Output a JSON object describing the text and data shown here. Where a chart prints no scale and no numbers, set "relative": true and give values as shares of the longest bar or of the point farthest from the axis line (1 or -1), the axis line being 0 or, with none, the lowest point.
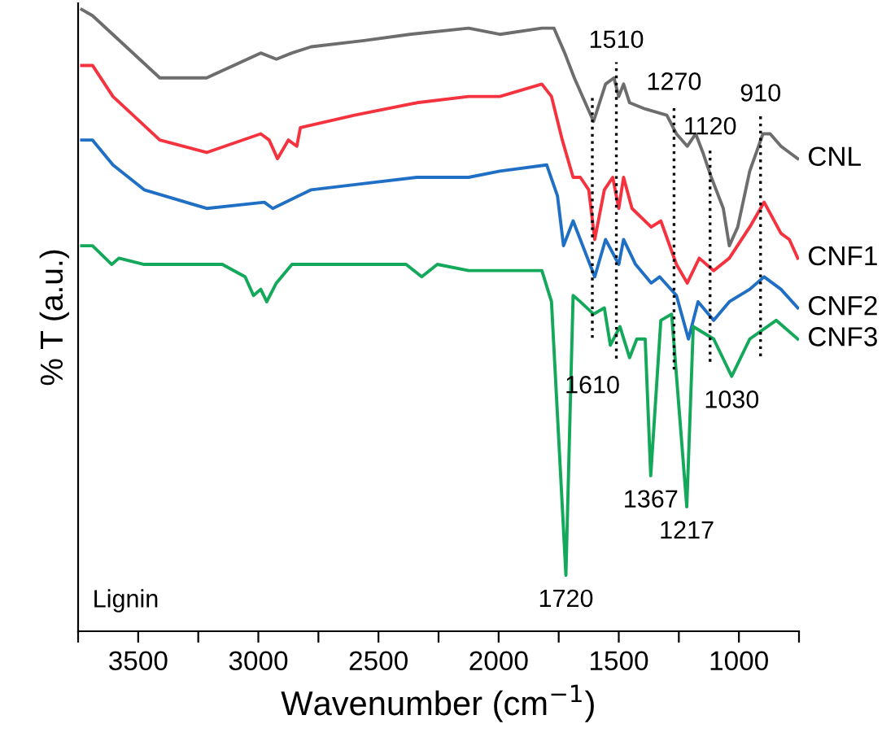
{
  "chart_data": {
    "type": "line",
    "relative": true,
    "xlabel": "Wavenumber (cm$^{−1}$)",
    "ylabel": "% T (a.u.)",
    "xlim": [
      3750,
      750
    ],
    "xticks": [
      {
        "value": 3750,
        "label": null
      },
      3500,
      {
        "value": 3250,
        "label": null
      },
      3000,
      {
        "value": 2750,
        "label": null
      },
      2500,
      {
        "value": 2250,
        "label": null
      },
      2000,
      {
        "value": 1750,
        "label": null
      },
      1500,
      {
        "value": 1250,
        "label": null
      },
      1000,
      {
        "value": 750,
        "label": null
      }
    ],
    "tick_labels": "x",
    "grid": false,
    "legend": false,
    "marker": "none",
    "line_style": "solid",
    "series": [
      {
        "name": "CNL",
        "color": "#6d6d6d",
        "x": [
          3735,
          3690,
          3410,
          3215,
          2990,
          2925,
          2860,
          2780,
          2560,
          2370,
          2125,
          1995,
          1820,
          1770,
          1725,
          1685,
          1605,
          1555,
          1520,
          1500,
          1480,
          1455,
          1390,
          1300,
          1260,
          1215,
          1180,
          1150,
          1115,
          1065,
          1040,
          1005,
          955,
          900,
          870,
          825,
          790,
          755
        ],
        "values": [
          1.0,
          0.99,
          0.89,
          0.89,
          0.93,
          0.92,
          0.93,
          0.94,
          0.95,
          0.96,
          0.97,
          0.96,
          0.97,
          0.97,
          0.93,
          0.89,
          0.82,
          0.88,
          0.89,
          0.86,
          0.88,
          0.85,
          0.84,
          0.83,
          0.8,
          0.78,
          0.8,
          0.77,
          0.73,
          0.68,
          0.62,
          0.65,
          0.74,
          0.8,
          0.8,
          0.78,
          0.77,
          0.76
        ]
      },
      {
        "name": "CNF1",
        "color": "#f5333f",
        "x": [
          3735,
          3690,
          3605,
          3410,
          3215,
          2990,
          2955,
          2920,
          2875,
          2840,
          2825,
          2600,
          2340,
          2125,
          1995,
          1820,
          1780,
          1735,
          1690,
          1660,
          1625,
          1600,
          1560,
          1525,
          1500,
          1480,
          1445,
          1365,
          1325,
          1260,
          1215,
          1165,
          1105,
          1040,
          955,
          895,
          825,
          790,
          755
        ],
        "values": [
          0.91,
          0.91,
          0.86,
          0.79,
          0.77,
          0.8,
          0.79,
          0.76,
          0.79,
          0.78,
          0.81,
          0.83,
          0.85,
          0.86,
          0.86,
          0.88,
          0.86,
          0.79,
          0.73,
          0.73,
          0.71,
          0.63,
          0.71,
          0.73,
          0.68,
          0.73,
          0.68,
          0.65,
          0.66,
          0.59,
          0.56,
          0.6,
          0.58,
          0.6,
          0.65,
          0.69,
          0.64,
          0.63,
          0.6
        ]
      },
      {
        "name": "CNF2",
        "color": "#1f6fc5",
        "x": [
          3735,
          3690,
          3605,
          3475,
          3215,
          2975,
          2940,
          2780,
          2560,
          2340,
          2125,
          1995,
          1800,
          1755,
          1730,
          1690,
          1660,
          1600,
          1555,
          1500,
          1480,
          1430,
          1365,
          1330,
          1260,
          1210,
          1170,
          1105,
          1040,
          955,
          895,
          825,
          755
        ],
        "values": [
          0.79,
          0.79,
          0.75,
          0.71,
          0.68,
          0.69,
          0.68,
          0.71,
          0.72,
          0.73,
          0.73,
          0.74,
          0.75,
          0.7,
          0.62,
          0.66,
          0.63,
          0.57,
          0.63,
          0.59,
          0.63,
          0.59,
          0.56,
          0.57,
          0.54,
          0.47,
          0.53,
          0.5,
          0.53,
          0.55,
          0.57,
          0.55,
          0.52
        ]
      },
      {
        "name": "CNF3",
        "color": "#14a85a",
        "x": [
          3735,
          3690,
          3610,
          3580,
          3475,
          3410,
          3150,
          3055,
          3020,
          2990,
          2965,
          2925,
          2860,
          2710,
          2385,
          2320,
          2255,
          2125,
          1995,
          1820,
          1780,
          1720,
          1690,
          1660,
          1605,
          1560,
          1535,
          1495,
          1455,
          1425,
          1390,
          1367,
          1325,
          1280,
          1217,
          1190,
          1105,
          1030,
          955,
          845,
          755
        ],
        "values": [
          0.62,
          0.62,
          0.59,
          0.6,
          0.59,
          0.59,
          0.59,
          0.57,
          0.54,
          0.55,
          0.53,
          0.56,
          0.59,
          0.59,
          0.59,
          0.57,
          0.59,
          0.58,
          0.58,
          0.58,
          0.53,
          0.09,
          0.54,
          0.53,
          0.51,
          0.52,
          0.46,
          0.49,
          0.44,
          0.47,
          0.47,
          0.25,
          0.5,
          0.51,
          0.2,
          0.49,
          0.47,
          0.41,
          0.47,
          0.5,
          0.47
        ]
      }
    ],
    "ref_lines": [
      {
        "axis": "x",
        "value": 1610,
        "label": "1610",
        "line_style": "dotted",
        "color": "#000000"
      },
      {
        "axis": "x",
        "value": 1510,
        "label": "1510",
        "line_style": "dotted",
        "color": "#000000"
      },
      {
        "axis": "x",
        "value": 1270,
        "label": "1270",
        "line_style": "dotted",
        "color": "#000000"
      },
      {
        "axis": "x",
        "value": 1120,
        "label": "1120",
        "line_style": "dotted",
        "color": "#000000"
      },
      {
        "axis": "x",
        "value": 910,
        "label": "910",
        "line_style": "dotted",
        "color": "#000000"
      }
    ],
    "annotations": [
      {
        "text": "1030",
        "x": 1030,
        "y": 0.41
      },
      {
        "text": "1367",
        "x": 1367,
        "y": 0.25
      },
      {
        "text": "1217",
        "x": 1217,
        "y": 0.2
      },
      {
        "text": "1720",
        "x": 1720,
        "y": 0.09
      },
      "Lignin"
    ]
  }
}
